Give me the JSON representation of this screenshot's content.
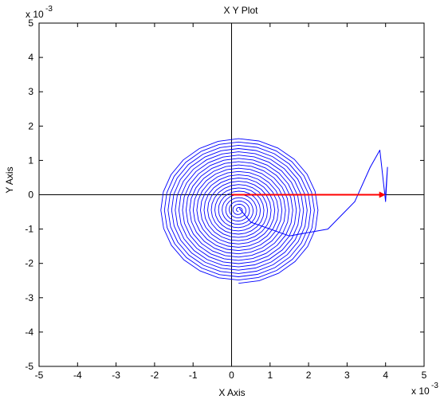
{
  "chart_data": {
    "type": "line",
    "title": "X Y Plot",
    "xlabel": "X Axis",
    "ylabel": "Y Axis",
    "x_exponent_base": "x 10",
    "x_exponent_power": "-3",
    "y_exponent_base": "x 10",
    "y_exponent_power": "-3",
    "xlim": [
      -5,
      5
    ],
    "ylim": [
      -5,
      5
    ],
    "xticks": [
      "-5",
      "-4",
      "-3",
      "-2",
      "-1",
      "0",
      "1",
      "2",
      "3",
      "4",
      "5"
    ],
    "yticks": [
      "-5",
      "-4",
      "-3",
      "-2",
      "-1",
      "0",
      "1",
      "2",
      "3",
      "4",
      "5"
    ],
    "grid": false,
    "crosshair_at_origin": true,
    "units_note": "values are in units of 1e-3",
    "series": [
      {
        "style": "line",
        "color": "#0000ff",
        "description_points": [
          [
            4.0,
            0.0
          ],
          [
            4.05,
            0.8
          ],
          [
            4.0,
            -0.2
          ],
          [
            3.85,
            1.3
          ],
          [
            3.6,
            0.8
          ],
          [
            3.2,
            -0.2
          ],
          [
            2.5,
            -1.0
          ],
          [
            1.5,
            -1.2
          ],
          [
            0.5,
            -0.8
          ],
          [
            0.2,
            -0.4
          ]
        ]
      },
      {
        "style": "arrow",
        "color": "#ff0000",
        "x": [
          0.0,
          4.0
        ],
        "y": [
          0.0,
          0.0
        ]
      }
    ],
    "spiral": {
      "center": [
        0.18,
        -0.45
      ],
      "outer_radius_x": 2.1,
      "outer_radius_y": 2.1,
      "turns": 22
    }
  }
}
